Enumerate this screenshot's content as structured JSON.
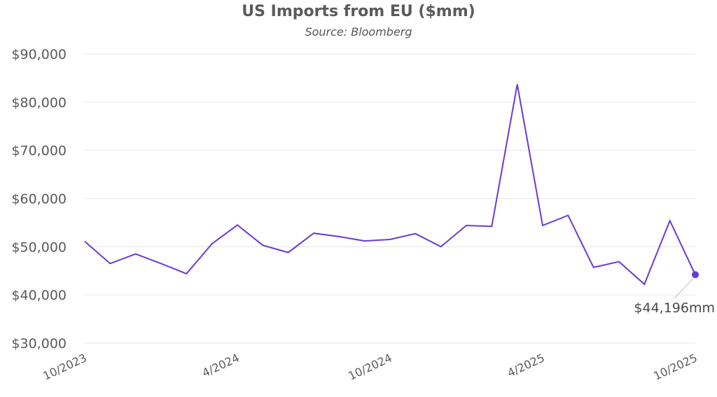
{
  "chart_data": {
    "type": "line",
    "title": "US Imports from EU ($mm)",
    "subtitle": "Source: Bloomberg",
    "xlabel": "",
    "ylabel": "",
    "ylim": [
      30000,
      90000
    ],
    "y_ticks": [
      "$30,000",
      "$40,000",
      "$50,000",
      "$60,000",
      "$70,000",
      "$80,000",
      "$90,000"
    ],
    "x_ticks": [
      "10/2023",
      "4/2024",
      "10/2024",
      "4/2025",
      "10/2025"
    ],
    "grid": true,
    "series_color": "#6a3ad4",
    "x": [
      "10/2023",
      "11/2023",
      "12/2023",
      "1/2024",
      "2/2024",
      "3/2024",
      "4/2024",
      "5/2024",
      "6/2024",
      "7/2024",
      "8/2024",
      "9/2024",
      "10/2024",
      "11/2024",
      "12/2024",
      "1/2025",
      "2/2025",
      "3/2025",
      "4/2025",
      "5/2025",
      "6/2025",
      "7/2025",
      "8/2025",
      "9/2025",
      "10/2025"
    ],
    "values": [
      51100,
      46500,
      48500,
      46500,
      44400,
      50600,
      54500,
      50300,
      48800,
      52800,
      52100,
      51200,
      51500,
      52700,
      50000,
      54400,
      54200,
      83700,
      54400,
      56500,
      45700,
      46900,
      42200,
      55400,
      44196
    ],
    "end_label": "$44,196mm"
  }
}
